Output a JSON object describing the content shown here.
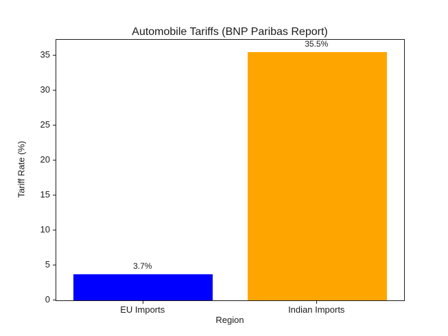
{
  "figure": {
    "background": "#ffffff",
    "text_color": "#1a1a1a",
    "axis_color": "#1a1a1a"
  },
  "chart_data": {
    "type": "bar",
    "title": "Automobile Tariffs (BNP Paribas Report)",
    "xlabel": "Region",
    "ylabel": "Tariff Rate (%)",
    "categories": [
      "EU Imports",
      "Indian Imports"
    ],
    "values": [
      3.7,
      35.5
    ],
    "bar_labels": [
      "3.7%",
      "35.5%"
    ],
    "bar_colors": [
      "#0000ff",
      "#ffa500"
    ],
    "ylim": [
      0,
      37.275
    ],
    "yticks": [
      0,
      5,
      10,
      15,
      20,
      25,
      30,
      35
    ],
    "grid": false,
    "legend": "none"
  }
}
